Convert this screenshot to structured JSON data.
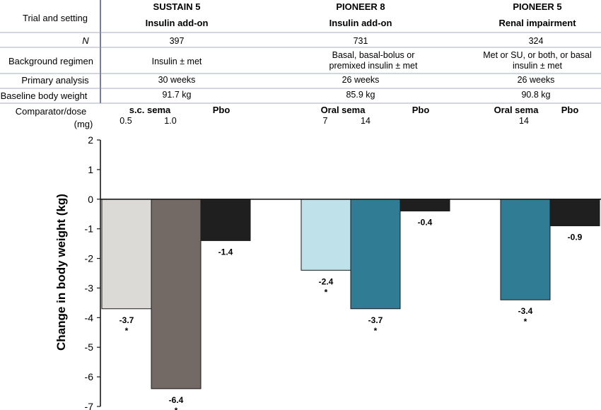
{
  "table": {
    "row_labels": [
      "Trial and setting",
      "N",
      "Background regimen",
      "Primary analysis",
      "Baseline body weight",
      "Comparator/dose",
      "(mg)"
    ],
    "trials": [
      {
        "name": "SUSTAIN 5",
        "setting": "Insulin add-on",
        "n": "397",
        "background": [
          "Insulin ± met"
        ],
        "primary": "30 weeks",
        "baseline": "91.7 kg",
        "comparator_active": "s.c. sema",
        "comparator_pbo": "Pbo",
        "doses": [
          "0.5",
          "1.0"
        ]
      },
      {
        "name": "PIONEER 8",
        "setting": "Insulin add-on",
        "n": "731",
        "background": [
          "Basal, basal-bolus or",
          "premixed insulin ± met"
        ],
        "primary": "26 weeks",
        "baseline": "85.9 kg",
        "comparator_active": "Oral sema",
        "comparator_pbo": "Pbo",
        "doses": [
          "7",
          "14"
        ]
      },
      {
        "name": "PIONEER 5",
        "setting": "Renal impairment",
        "n": "324",
        "background": [
          "Met or SU, or both, or basal",
          "insulin ± met"
        ],
        "primary": "26 weeks",
        "baseline": "90.8 kg",
        "comparator_active": "Oral sema",
        "comparator_pbo": "Pbo",
        "doses": [
          "14"
        ]
      }
    ]
  },
  "chart_data": {
    "type": "bar",
    "ylabel": "Change in body weight (kg)",
    "ylim": [
      -7,
      2
    ],
    "yticks": [
      2,
      1,
      0,
      -1,
      -2,
      -3,
      -4,
      -5,
      -6,
      -7
    ],
    "grid": false,
    "groups": [
      {
        "trial": "SUSTAIN 5",
        "bars": [
          {
            "label": "0.5",
            "value": -3.7,
            "color": "#dcdad6",
            "significant": true
          },
          {
            "label": "1.0",
            "value": -6.4,
            "color": "#736a66",
            "significant": true
          },
          {
            "label": "Pbo",
            "value": -1.4,
            "color": "#1f1f1f",
            "significant": false
          }
        ]
      },
      {
        "trial": "PIONEER 8",
        "bars": [
          {
            "label": "7",
            "value": -2.4,
            "color": "#bfe2ea",
            "significant": true
          },
          {
            "label": "14",
            "value": -3.7,
            "color": "#2f7c94",
            "significant": true
          },
          {
            "label": "Pbo",
            "value": -0.4,
            "color": "#1f1f1f",
            "significant": false
          }
        ]
      },
      {
        "trial": "PIONEER 5",
        "bars": [
          {
            "label": "14",
            "value": -3.4,
            "color": "#2f7c94",
            "significant": true
          },
          {
            "label": "Pbo",
            "value": -0.9,
            "color": "#1f1f1f",
            "significant": false
          }
        ]
      }
    ],
    "significance_marker": "*"
  }
}
